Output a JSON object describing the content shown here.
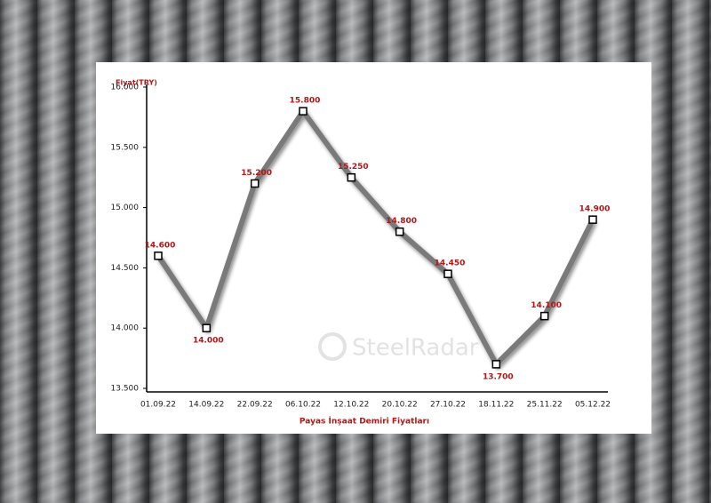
{
  "chart_data": {
    "type": "line",
    "y_label": "Fiyat(TRY)",
    "x_label": "Payas İnşaat Demiri Fiyatları",
    "watermark": "SteelRadar",
    "categories": [
      "01.09.22",
      "14.09.22",
      "22.09.22",
      "06.10.22",
      "12.10.22",
      "20.10.22",
      "27.10.22",
      "18.11.22",
      "25.11.22",
      "05.12.22"
    ],
    "series": [
      {
        "color": "#7a7a7a",
        "values": [
          14600,
          14000,
          15200,
          15800,
          15250,
          14800,
          14450,
          13700,
          14100,
          14900
        ],
        "value_labels": [
          "14.600",
          "14.000",
          "15.200",
          "15.800",
          "15.250",
          "14.800",
          "14.450",
          "13.700",
          "14.100",
          "14.900"
        ]
      }
    ],
    "ylim": [
      13500,
      16000
    ],
    "yticks": [
      {
        "value": 13500,
        "label": "13.500"
      },
      {
        "value": 14000,
        "label": "14.000"
      },
      {
        "value": 14500,
        "label": "14.500"
      },
      {
        "value": 15000,
        "label": "15.000"
      },
      {
        "value": 15500,
        "label": "15.500"
      },
      {
        "value": 16000,
        "label": "16.000"
      }
    ]
  }
}
